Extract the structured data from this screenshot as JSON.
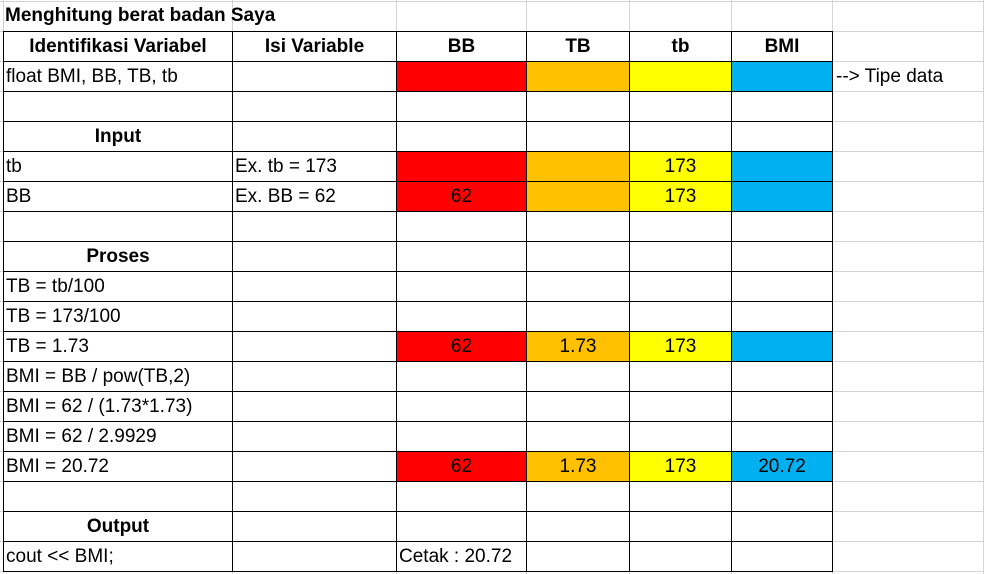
{
  "colors": {
    "red": "#ff0000",
    "orange": "#ffc000",
    "yellow": "#ffff00",
    "blue": "#00b0f0"
  },
  "title": "Menghitung berat badan Saya",
  "headers": [
    "Identifikasi Variabel",
    "Isi Variable",
    "BB",
    "TB",
    "tb",
    "BMI"
  ],
  "side_note": "--> Tipe data",
  "rows": [
    {
      "a": "float BMI, BB, TB, tb",
      "b": "",
      "bold": false,
      "values": [
        "",
        "",
        "",
        ""
      ],
      "fills": [
        "red",
        "orange",
        "yellow",
        "blue"
      ]
    },
    {
      "a": "",
      "b": "",
      "bold": false,
      "values": [
        "",
        "",
        "",
        ""
      ],
      "fills": [
        "",
        "",
        "",
        ""
      ]
    },
    {
      "a": "Input",
      "b": "",
      "bold": true,
      "values": [
        "",
        "",
        "",
        ""
      ],
      "fills": [
        "",
        "",
        "",
        ""
      ]
    },
    {
      "a": "tb",
      "b": "Ex. tb = 173",
      "bold": false,
      "values": [
        "",
        "",
        "173",
        ""
      ],
      "fills": [
        "red",
        "orange",
        "yellow",
        "blue"
      ]
    },
    {
      "a": "BB",
      "b": "Ex. BB = 62",
      "bold": false,
      "values": [
        "62",
        "",
        "173",
        ""
      ],
      "fills": [
        "red",
        "orange",
        "yellow",
        "blue"
      ]
    },
    {
      "a": "",
      "b": "",
      "bold": false,
      "values": [
        "",
        "",
        "",
        ""
      ],
      "fills": [
        "",
        "",
        "",
        ""
      ]
    },
    {
      "a": "Proses",
      "b": "",
      "bold": true,
      "values": [
        "",
        "",
        "",
        ""
      ],
      "fills": [
        "",
        "",
        "",
        ""
      ]
    },
    {
      "a": "TB = tb/100",
      "b": "",
      "bold": false,
      "values": [
        "",
        "",
        "",
        ""
      ],
      "fills": [
        "",
        "",
        "",
        ""
      ]
    },
    {
      "a": "TB = 173/100",
      "b": "",
      "bold": false,
      "values": [
        "",
        "",
        "",
        ""
      ],
      "fills": [
        "",
        "",
        "",
        ""
      ]
    },
    {
      "a": "TB = 1.73",
      "b": "",
      "bold": false,
      "values": [
        "62",
        "1.73",
        "173",
        ""
      ],
      "fills": [
        "red",
        "orange",
        "yellow",
        "blue"
      ]
    },
    {
      "a": "BMI = BB / pow(TB,2)",
      "b": "",
      "bold": false,
      "values": [
        "",
        "",
        "",
        ""
      ],
      "fills": [
        "",
        "",
        "",
        ""
      ]
    },
    {
      "a": "BMI = 62 / (1.73*1.73)",
      "b": "",
      "bold": false,
      "values": [
        "",
        "",
        "",
        ""
      ],
      "fills": [
        "",
        "",
        "",
        ""
      ]
    },
    {
      "a": "BMI = 62 / 2.9929",
      "b": "",
      "bold": false,
      "values": [
        "",
        "",
        "",
        ""
      ],
      "fills": [
        "",
        "",
        "",
        ""
      ]
    },
    {
      "a": "BMI = 20.72",
      "b": "",
      "bold": false,
      "values": [
        "62",
        "1.73",
        "173",
        "20.72"
      ],
      "fills": [
        "red",
        "orange",
        "yellow",
        "blue"
      ]
    },
    {
      "a": "",
      "b": "",
      "bold": false,
      "values": [
        "",
        "",
        "",
        ""
      ],
      "fills": [
        "",
        "",
        "",
        ""
      ]
    },
    {
      "a": "Output",
      "b": "",
      "bold": true,
      "values": [
        "",
        "",
        "",
        ""
      ],
      "fills": [
        "",
        "",
        "",
        ""
      ]
    },
    {
      "a": "cout << BMI;",
      "b": "",
      "bold": false,
      "values": [
        "Cetak : 20.72",
        "",
        "",
        ""
      ],
      "fills": [
        "",
        "",
        "",
        ""
      ]
    }
  ]
}
